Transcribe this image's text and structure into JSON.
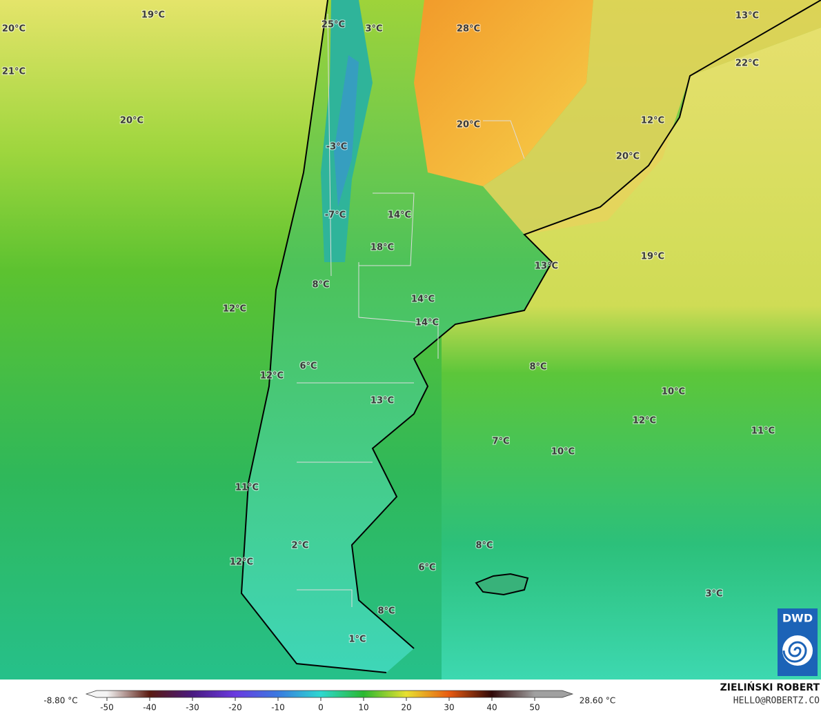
{
  "map": {
    "temperature_labels": [
      "19°C",
      "20°C",
      "21°C",
      "25°C",
      "3°C",
      "28°C",
      "13°C",
      "22°C",
      "20°C",
      "20°C",
      "12°C",
      "-3°C",
      "20°C",
      "14°C",
      "-7°C",
      "18°C",
      "13°C",
      "19°C",
      "8°C",
      "12°C",
      "14°C",
      "14°C",
      "6°C",
      "8°C",
      "12°C",
      "13°C",
      "10°C",
      "12°C",
      "11°C",
      "7°C",
      "10°C",
      "11°C",
      "2°C",
      "8°C",
      "12°C",
      "6°C",
      "3°C",
      "8°C",
      "1°C"
    ],
    "colorbar": {
      "min_label": "-8.80 °C",
      "max_label": "28.60 °C",
      "ticks": [
        -50,
        -40,
        -30,
        -20,
        -10,
        0,
        10,
        20,
        30,
        40,
        50
      ]
    },
    "credit": {
      "author": "ZIELIŃSKI ROBERT",
      "email": "HELLO@ROBERTZ.CO"
    },
    "logo": "DWD"
  }
}
